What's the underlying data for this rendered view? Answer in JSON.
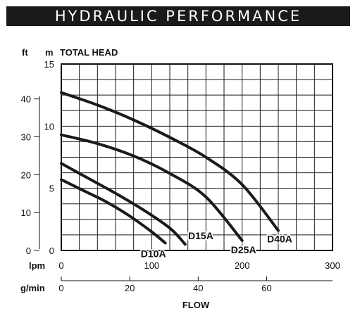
{
  "banner_title": "HYDRAULIC PERFORMANCE",
  "chart_data": {
    "type": "line",
    "ylabel_ft": "ft",
    "ylabel_m": "m",
    "ylabel": "TOTAL HEAD",
    "xlabel": "FLOW",
    "x_unit_primary": "lpm",
    "x_unit_secondary": "g/min",
    "xlim_lpm": [
      0,
      300
    ],
    "ylim_m": [
      0,
      15
    ],
    "grid": true,
    "x_ticks_lpm": [
      "0",
      "100",
      "200",
      "300"
    ],
    "x_ticks_gpm": [
      {
        "label": "0",
        "gpm": 0
      },
      {
        "label": "20",
        "gpm": 20
      },
      {
        "label": "40",
        "gpm": 40
      },
      {
        "label": "60",
        "gpm": 60
      }
    ],
    "y_ticks_m": [
      "0",
      "5",
      "10",
      "15"
    ],
    "y_ticks_ft": [
      {
        "label": "0",
        "ft": 0
      },
      {
        "label": "10",
        "ft": 10
      },
      {
        "label": "20",
        "ft": 20
      },
      {
        "label": "30",
        "ft": 30
      },
      {
        "label": "40",
        "ft": 40
      }
    ],
    "series": [
      {
        "name": "D10A",
        "x": [
          0,
          25,
          50,
          75,
          100,
          115
        ],
        "y": [
          5.7,
          4.8,
          3.9,
          2.8,
          1.5,
          0.6
        ]
      },
      {
        "name": "D15A",
        "x": [
          0,
          30,
          60,
          90,
          120,
          137
        ],
        "y": [
          7.0,
          5.8,
          4.6,
          3.3,
          1.8,
          0.5
        ]
      },
      {
        "name": "D25A",
        "x": [
          0,
          40,
          80,
          120,
          160,
          200
        ],
        "y": [
          9.3,
          8.6,
          7.6,
          6.2,
          4.3,
          0.8
        ]
      },
      {
        "name": "D40A",
        "x": [
          0,
          40,
          80,
          120,
          160,
          200,
          240
        ],
        "y": [
          12.7,
          11.7,
          10.5,
          9.1,
          7.5,
          5.3,
          1.6
        ]
      }
    ]
  }
}
